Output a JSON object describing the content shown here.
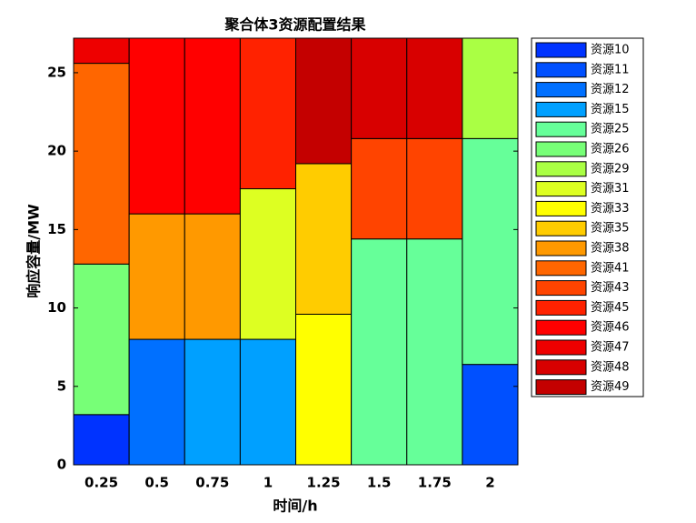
{
  "chart_data": {
    "type": "stacked-bar",
    "title": "聚合体3资源配置结果",
    "xlabel": "时间/h",
    "ylabel": "响应容量/MW",
    "categories": [
      "0.25",
      "0.5",
      "0.75",
      "1",
      "1.25",
      "1.5",
      "1.75",
      "2"
    ],
    "ylim": [
      0,
      27.2
    ],
    "yticks": [
      0,
      5,
      10,
      15,
      20,
      25
    ],
    "legend": "outside-right",
    "series": [
      {
        "name": "资源10",
        "color": "#0033ff",
        "values": [
          3.2,
          null,
          null,
          null,
          null,
          null,
          null,
          null
        ]
      },
      {
        "name": "资源11",
        "color": "#0050ff",
        "values": [
          null,
          null,
          null,
          null,
          null,
          null,
          null,
          6.4
        ]
      },
      {
        "name": "资源12",
        "color": "#0070ff",
        "values": [
          null,
          8,
          null,
          null,
          null,
          null,
          null,
          null
        ]
      },
      {
        "name": "资源15",
        "color": "#00a0ff",
        "values": [
          null,
          null,
          8,
          8,
          null,
          null,
          null,
          null
        ]
      },
      {
        "name": "资源25",
        "color": "#66ff99",
        "values": [
          null,
          null,
          null,
          null,
          null,
          14.4,
          14.4,
          14.4
        ]
      },
      {
        "name": "资源26",
        "color": "#77ff77",
        "values": [
          9.6,
          null,
          null,
          null,
          null,
          null,
          null,
          null
        ]
      },
      {
        "name": "资源29",
        "color": "#aaff44",
        "values": [
          null,
          null,
          null,
          null,
          null,
          null,
          null,
          6.4
        ]
      },
      {
        "name": "资源31",
        "color": "#ddff22",
        "values": [
          null,
          null,
          null,
          9.6,
          null,
          null,
          null,
          null
        ]
      },
      {
        "name": "资源33",
        "color": "#ffff00",
        "values": [
          null,
          null,
          null,
          null,
          9.6,
          null,
          null,
          null
        ]
      },
      {
        "name": "资源35",
        "color": "#ffcc00",
        "values": [
          null,
          null,
          null,
          null,
          9.6,
          null,
          null,
          null
        ]
      },
      {
        "name": "资源38",
        "color": "#ff9900",
        "values": [
          null,
          8,
          8,
          null,
          null,
          null,
          null,
          null
        ]
      },
      {
        "name": "资源41",
        "color": "#ff6600",
        "values": [
          12.8,
          null,
          null,
          null,
          null,
          null,
          null,
          null
        ]
      },
      {
        "name": "资源43",
        "color": "#ff4400",
        "values": [
          null,
          null,
          null,
          null,
          null,
          6.4,
          6.4,
          null
        ]
      },
      {
        "name": "资源45",
        "color": "#ff2200",
        "values": [
          null,
          null,
          null,
          9.6,
          null,
          null,
          null,
          null
        ]
      },
      {
        "name": "资源46",
        "color": "#ff0000",
        "values": [
          null,
          11.2,
          11.2,
          null,
          null,
          null,
          null,
          null
        ]
      },
      {
        "name": "资源47",
        "color": "#ee0000",
        "values": [
          1.6,
          null,
          null,
          null,
          null,
          null,
          null,
          null
        ]
      },
      {
        "name": "资源48",
        "color": "#d80000",
        "values": [
          null,
          null,
          null,
          null,
          null,
          6.4,
          6.4,
          null
        ]
      },
      {
        "name": "资源49",
        "color": "#c40000",
        "values": [
          null,
          null,
          null,
          null,
          8,
          null,
          null,
          null
        ]
      }
    ]
  }
}
